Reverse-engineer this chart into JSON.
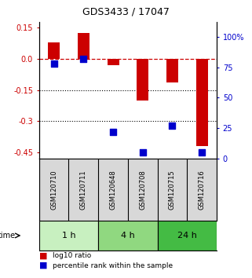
{
  "title": "GDS3433 / 17047",
  "samples": [
    "GSM120710",
    "GSM120711",
    "GSM120648",
    "GSM120708",
    "GSM120715",
    "GSM120716"
  ],
  "log10_ratio": [
    0.08,
    0.125,
    -0.03,
    -0.2,
    -0.115,
    -0.42
  ],
  "percentile_rank": [
    78,
    82,
    22,
    5,
    27,
    5
  ],
  "time_groups": [
    {
      "label": "1 h",
      "start": 0,
      "end": 2,
      "color": "#c8f0c0"
    },
    {
      "label": "4 h",
      "start": 2,
      "end": 4,
      "color": "#90d880"
    },
    {
      "label": "24 h",
      "start": 4,
      "end": 6,
      "color": "#44bb44"
    }
  ],
  "red_color": "#cc0000",
  "blue_color": "#0000cc",
  "ylim_left": [
    -0.48,
    0.175
  ],
  "ylim_right": [
    0,
    112
  ],
  "yticks_left": [
    0.15,
    0.0,
    -0.15,
    -0.3,
    -0.45
  ],
  "yticks_right": [
    100,
    75,
    50,
    25,
    0
  ],
  "hline_y": 0,
  "dotted_lines": [
    -0.15,
    -0.3
  ],
  "bar_width": 0.4,
  "marker_size": 40,
  "bg_color": "#d8d8d8",
  "legend_labels": [
    "log10 ratio",
    "percentile rank within the sample"
  ]
}
